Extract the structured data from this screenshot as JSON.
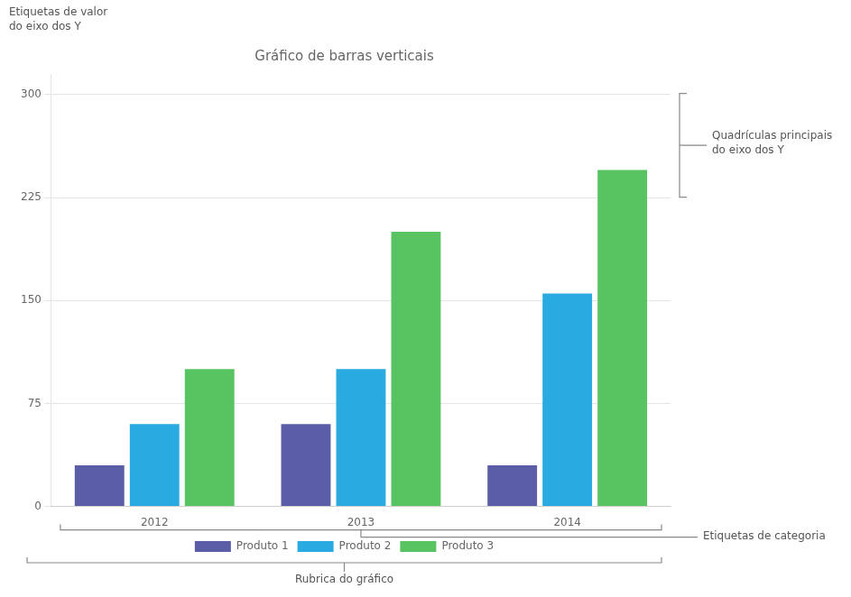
{
  "chart_data": {
    "type": "bar",
    "title": "Gráfico de barras verticais",
    "categories": [
      "2012",
      "2013",
      "2014"
    ],
    "series": [
      {
        "name": "Produto 1",
        "color": "#5B5EA6",
        "values": [
          30,
          60,
          30
        ]
      },
      {
        "name": "Produto 2",
        "color": "#29ABE2",
        "values": [
          60,
          100,
          155
        ]
      },
      {
        "name": "Produto 3",
        "color": "#57C461",
        "values": [
          100,
          200,
          245
        ]
      }
    ],
    "ylim": [
      0,
      315
    ],
    "yticks": [
      0,
      75,
      150,
      225,
      300
    ],
    "grid": true,
    "legend": "bottom",
    "annotations": [
      "Etiquetas de valor\ndo eixo dos Y",
      "Quadrículas principais\ndo eixo dos Y",
      "Etiquetas de categoria",
      "Rubrica do gráfico"
    ]
  }
}
